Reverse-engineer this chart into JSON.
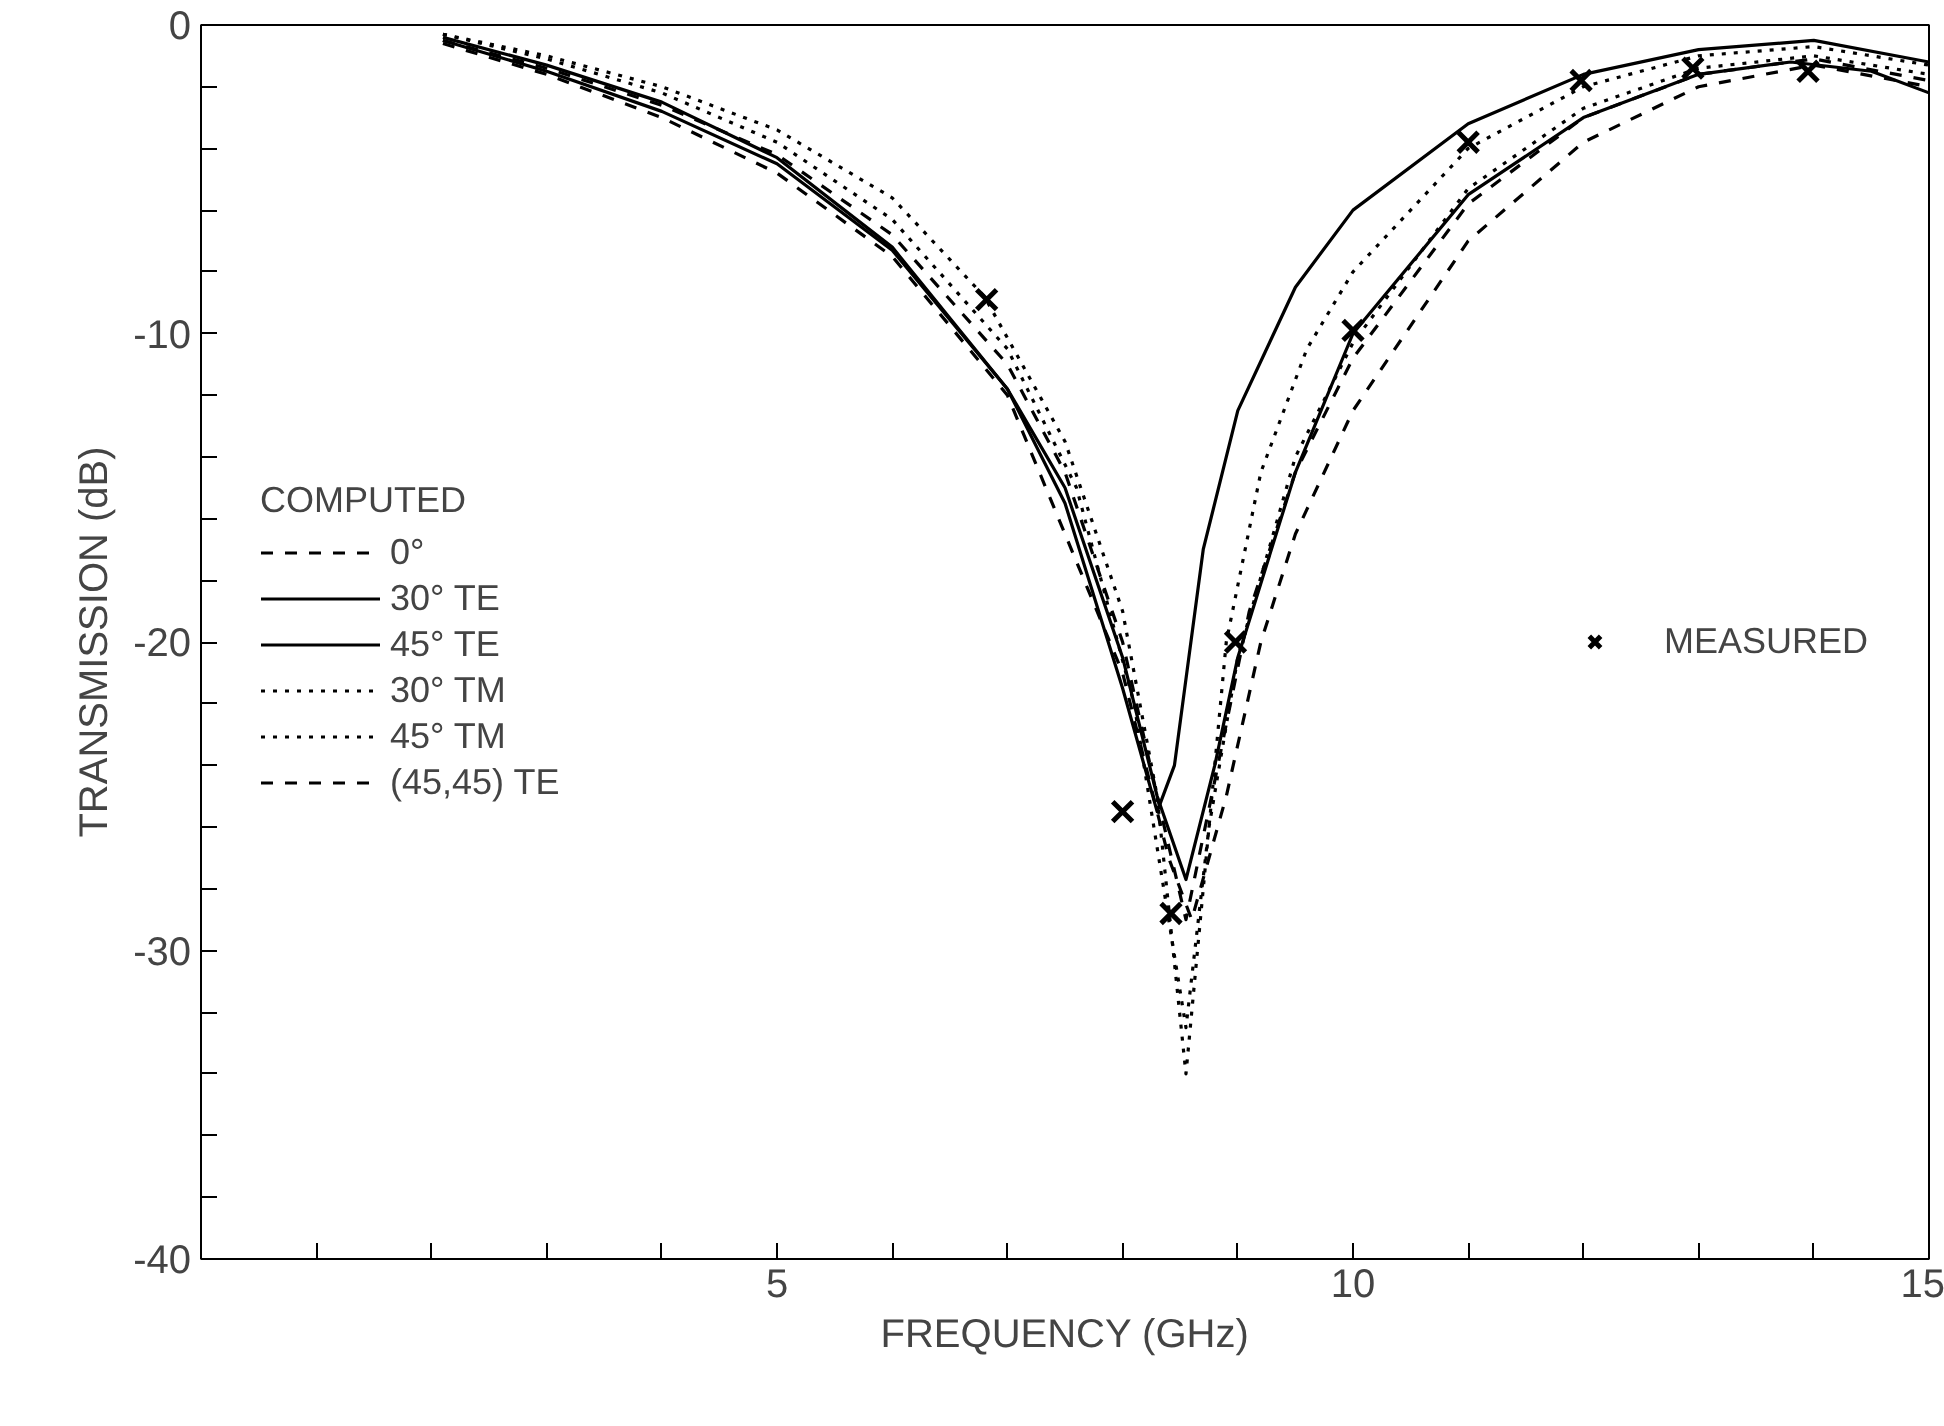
{
  "chart_data": {
    "type": "line",
    "xlabel": "FREQUENCY (GHz)",
    "ylabel": "TRANSMISSION (dB)",
    "legend_title": "COMPUTED",
    "legend": "left",
    "grid": false,
    "xlim": [
      0,
      15
    ],
    "ylim": [
      -40,
      0
    ],
    "xticks": [
      {
        "value": 1,
        "label": null
      },
      {
        "value": 2,
        "label": null
      },
      {
        "value": 3,
        "label": null
      },
      {
        "value": 4,
        "label": null
      },
      5,
      {
        "value": 6,
        "label": null
      },
      {
        "value": 7,
        "label": null
      },
      {
        "value": 8,
        "label": null
      },
      {
        "value": 9,
        "label": null
      },
      10,
      {
        "value": 11,
        "label": null
      },
      {
        "value": 12,
        "label": null
      },
      {
        "value": 13,
        "label": null
      },
      {
        "value": 14,
        "label": null
      },
      15
    ],
    "yticks": [
      -40,
      {
        "value": -38,
        "label": null
      },
      {
        "value": -36,
        "label": null
      },
      {
        "value": -34,
        "label": null
      },
      {
        "value": -32,
        "label": null
      },
      -30,
      {
        "value": -28,
        "label": null
      },
      {
        "value": -26,
        "label": null
      },
      {
        "value": -24,
        "label": null
      },
      {
        "value": -22,
        "label": null
      },
      -20,
      {
        "value": -18,
        "label": null
      },
      {
        "value": -16,
        "label": null
      },
      {
        "value": -14,
        "label": null
      },
      {
        "value": -12,
        "label": null
      },
      -10,
      {
        "value": -8,
        "label": null
      },
      {
        "value": -6,
        "label": null
      },
      {
        "value": -4,
        "label": null
      },
      {
        "value": -2,
        "label": null
      },
      0
    ],
    "series": [
      {
        "name": "0°",
        "color": "#000000",
        "line_style": "dashed",
        "x": [
          2.1,
          3,
          4,
          5,
          6,
          7,
          7.5,
          8,
          8.3,
          8.55,
          8.8,
          9.1,
          9.5,
          10,
          11,
          12,
          13,
          14,
          15
        ],
        "values": [
          -0.5,
          -1.4,
          -2.6,
          -4.2,
          -6.8,
          -11,
          -14.5,
          -20,
          -25,
          -29,
          -24.5,
          -19,
          -14.5,
          -10.8,
          -5.8,
          -3,
          -1.6,
          -1.1,
          -1.8
        ]
      },
      {
        "name": "30° TE",
        "color": "#000000",
        "line_style": "solid",
        "x": [
          2.1,
          3,
          4,
          5,
          6,
          7,
          7.5,
          8,
          8.3,
          8.45,
          8.7,
          9,
          9.5,
          10,
          11,
          12,
          13,
          14,
          15
        ],
        "values": [
          -0.4,
          -1.3,
          -2.5,
          -4.3,
          -7.2,
          -11.8,
          -15.5,
          -21.5,
          -25.5,
          -24,
          -17,
          -12.5,
          -8.5,
          -6,
          -3.2,
          -1.6,
          -0.8,
          -0.5,
          -1.2
        ]
      },
      {
        "name": "45° TE",
        "color": "#000000",
        "line_style": "solid",
        "x": [
          2.1,
          3,
          4,
          5,
          6,
          7,
          7.5,
          8,
          8.3,
          8.55,
          8.8,
          9,
          9.5,
          10,
          11,
          12,
          13,
          13.8,
          14.5,
          15
        ],
        "values": [
          -0.5,
          -1.5,
          -2.8,
          -4.5,
          -7.3,
          -11.8,
          -15,
          -20.5,
          -25,
          -27.7,
          -24,
          -20.5,
          -14.5,
          -10,
          -5.5,
          -3,
          -1.6,
          -1.2,
          -1.5,
          -2.2
        ]
      },
      {
        "name": "30° TM",
        "color": "#000000",
        "line_style": "dotted",
        "x": [
          2.1,
          3,
          4,
          5,
          6,
          6.8,
          7.5,
          8,
          8.3,
          8.55,
          8.7,
          8.9,
          9.2,
          9.6,
          10,
          11,
          12,
          13,
          14,
          15
        ],
        "values": [
          -0.3,
          -1,
          -2,
          -3.4,
          -5.6,
          -8.8,
          -13.5,
          -19,
          -25,
          -34,
          -28,
          -20,
          -14.5,
          -10.5,
          -8,
          -4,
          -2,
          -1,
          -0.7,
          -1.3
        ]
      },
      {
        "name": "45° TM",
        "color": "#000000",
        "line_style": "dotted",
        "x": [
          2.1,
          3,
          4,
          5,
          6,
          7,
          7.6,
          8.1,
          8.4,
          8.55,
          8.75,
          9,
          9.5,
          10,
          11,
          12,
          13,
          14,
          15
        ],
        "values": [
          -0.3,
          -1.1,
          -2.2,
          -3.8,
          -6.3,
          -10.5,
          -15,
          -22,
          -29,
          -32.5,
          -26,
          -20.5,
          -14,
          -10.3,
          -5.3,
          -2.7,
          -1.4,
          -1,
          -1.6
        ]
      },
      {
        "name": "(45,45) TE",
        "color": "#000000",
        "line_style": "dashed",
        "x": [
          2.1,
          3,
          4,
          5,
          6,
          7,
          8,
          8.4,
          8.6,
          8.9,
          9.2,
          9.5,
          10,
          11,
          12,
          13,
          14,
          15
        ],
        "values": [
          -0.6,
          -1.6,
          -3,
          -4.8,
          -7.5,
          -12,
          -21,
          -27,
          -29,
          -25,
          -20,
          -16.5,
          -12.5,
          -7,
          -3.8,
          -2,
          -1.3,
          -2
        ]
      },
      {
        "name": "MEASURED",
        "type": "scatter",
        "marker": "cross",
        "color": "#000000",
        "x": [
          6.82,
          8.0,
          8.42,
          8.98,
          10.0,
          11.0,
          11.98,
          12.95,
          13.95
        ],
        "values": [
          -8.9,
          -25.5,
          -28.8,
          -20,
          -9.9,
          -3.8,
          -1.8,
          -1.4,
          -1.5
        ]
      }
    ]
  }
}
